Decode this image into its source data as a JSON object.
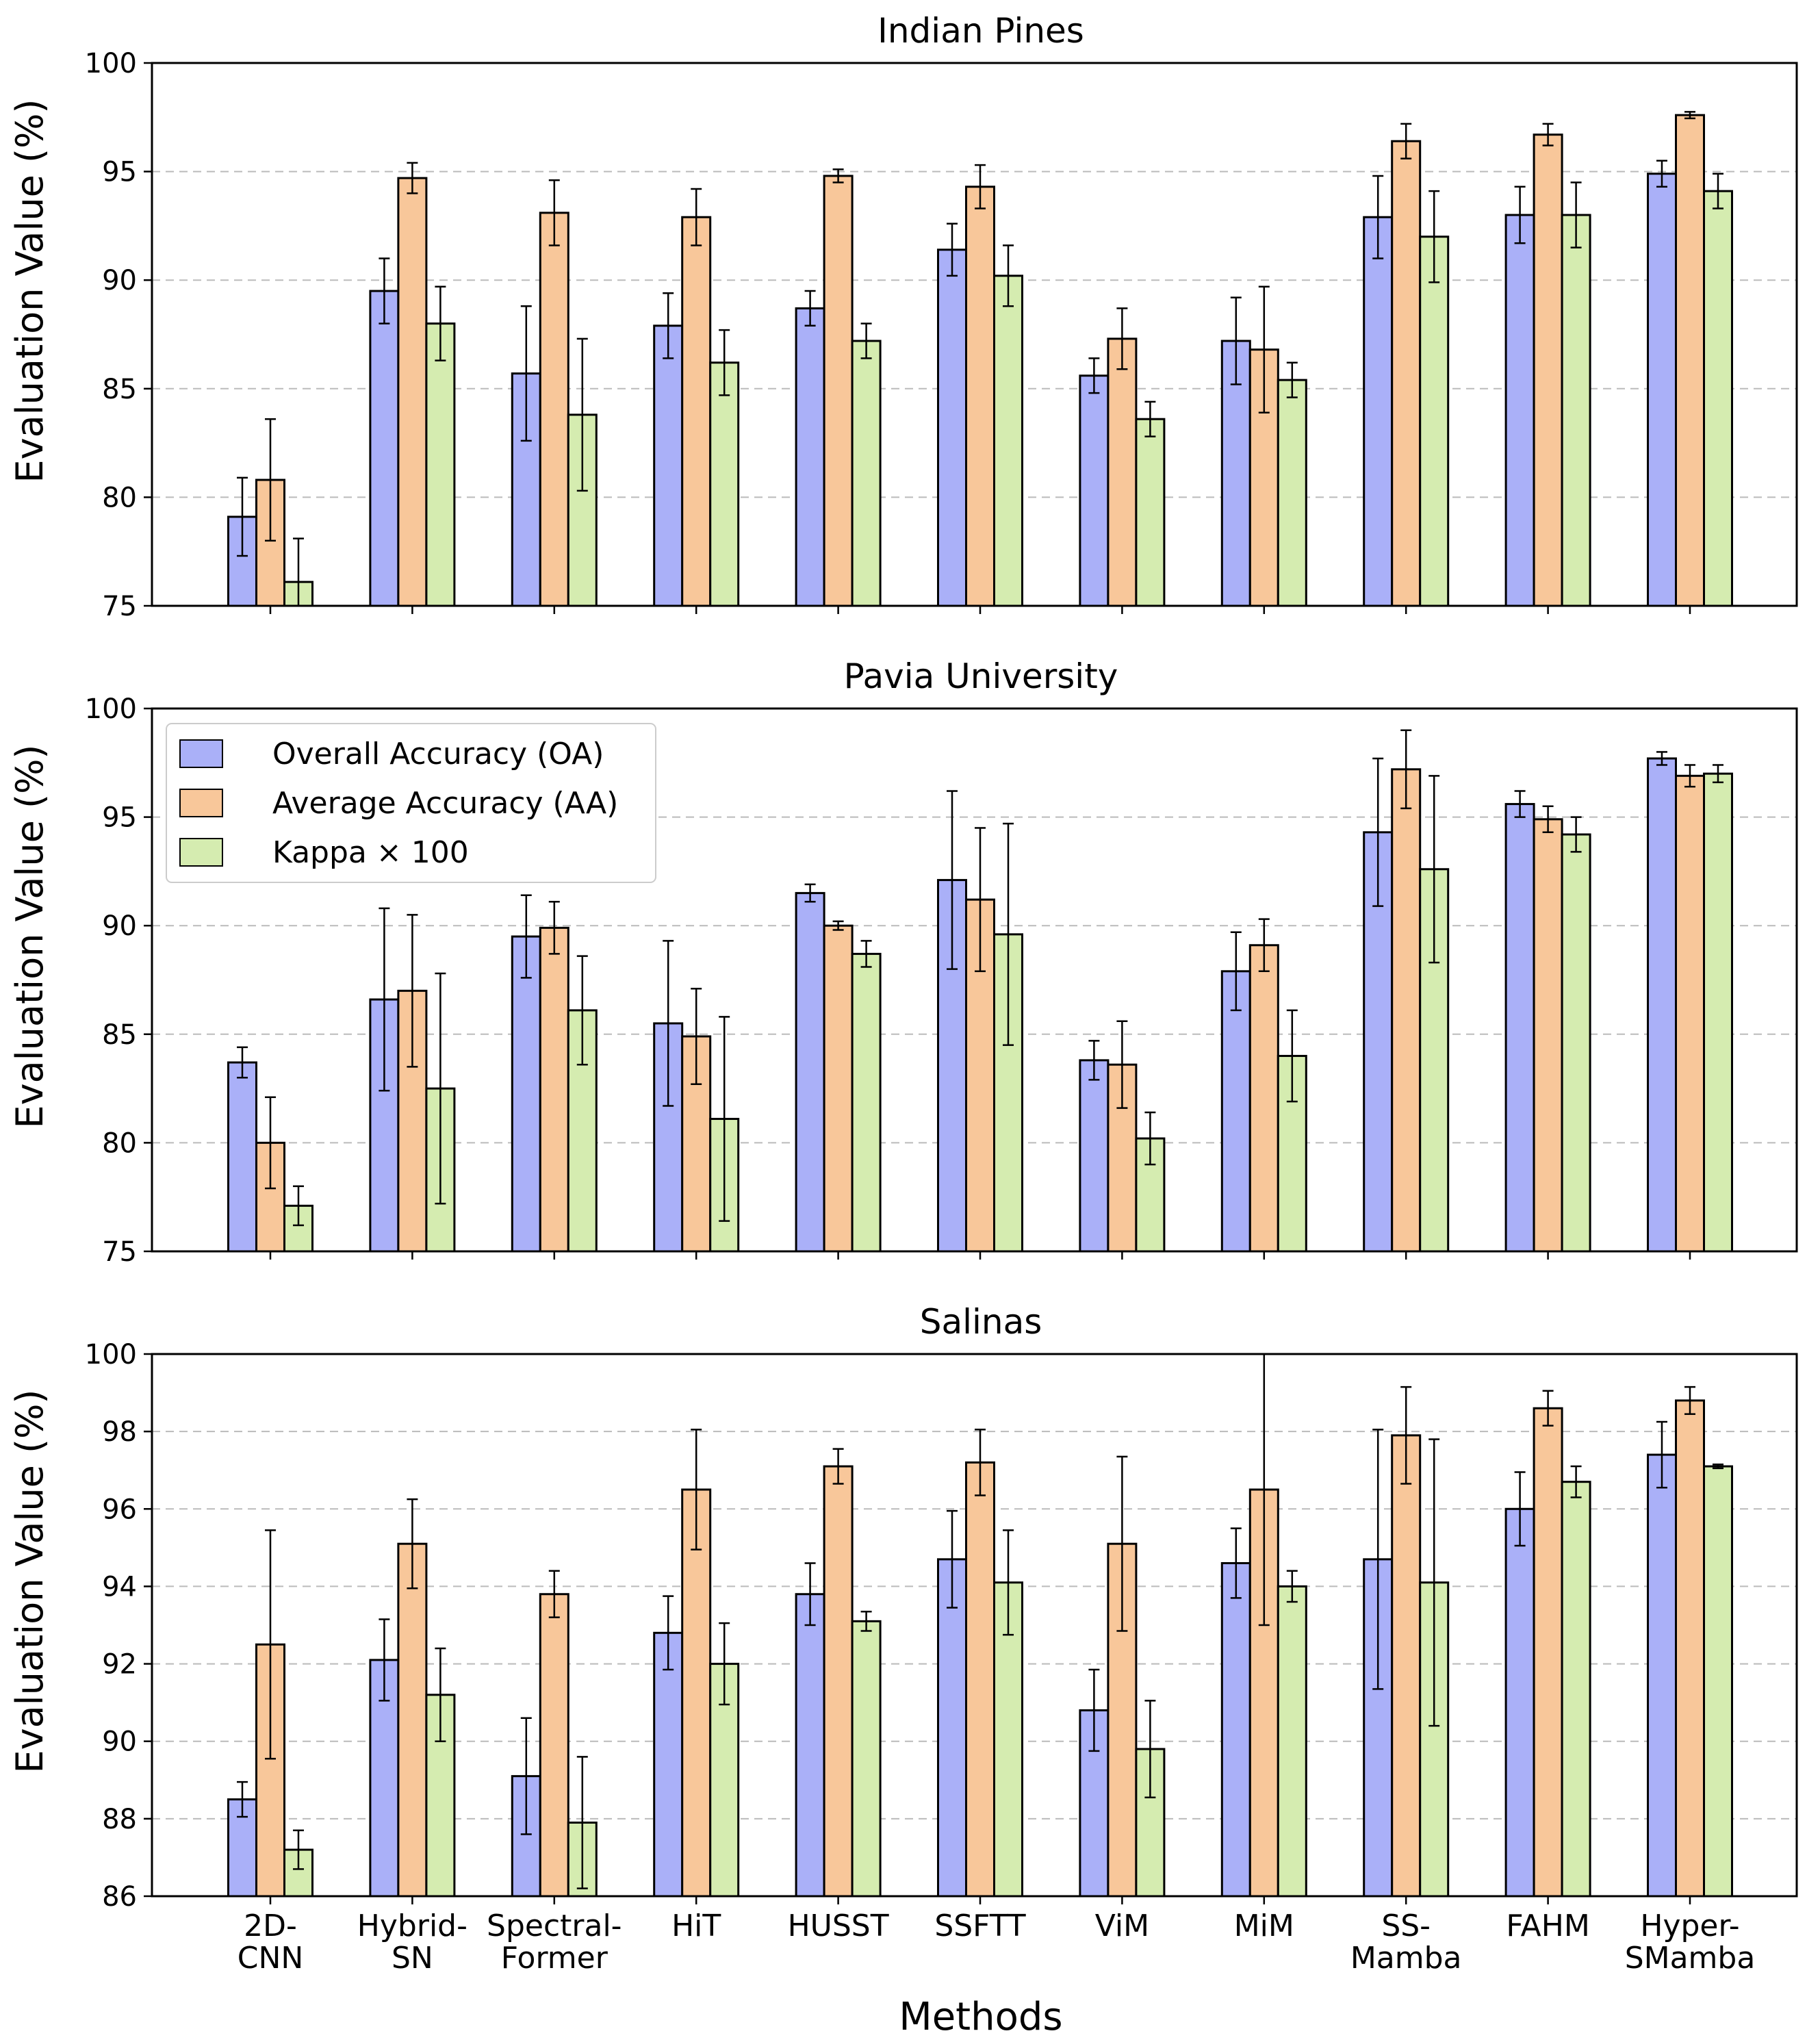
{
  "chart_data": {
    "type": "bar",
    "xlabel": "Methods",
    "ylabel": "Evaluation Value (%)",
    "categories": [
      [
        "2D-",
        "CNN"
      ],
      [
        "Hybrid-",
        "SN"
      ],
      [
        "Spectral-",
        "Former"
      ],
      [
        "HiT"
      ],
      [
        "HUSST"
      ],
      [
        "SSFTT"
      ],
      [
        "ViM"
      ],
      [
        "MiM"
      ],
      [
        "SS-",
        "Mamba"
      ],
      [
        "FAHM"
      ],
      [
        "Hyper-",
        "SMamba"
      ]
    ],
    "legend": {
      "placement": "upper-left of middle panel",
      "entries": [
        "Overall Accuracy (OA)",
        "Average Accuracy (AA)",
        "Kappa × 100"
      ]
    },
    "colors": {
      "OA": "#aab0f8",
      "AA": "#f8c79a",
      "Kappa": "#d5ecb0",
      "edge": "#000000",
      "grid": "#bbbbbb"
    },
    "panels": [
      {
        "title": "Indian Pines",
        "ylim": [
          75,
          100
        ],
        "yticks": [
          "75",
          "80",
          "85",
          "90",
          "95",
          "100"
        ],
        "ytick_values": [
          75,
          80,
          85,
          90,
          95,
          100
        ],
        "grid": "horizontal dashed",
        "series": [
          {
            "name": "Overall Accuracy (OA)",
            "values": [
              79.1,
              89.5,
              85.7,
              87.9,
              88.7,
              91.4,
              85.6,
              87.2,
              92.9,
              93.0,
              94.9
            ],
            "errors": [
              1.8,
              1.5,
              3.1,
              1.5,
              0.8,
              1.2,
              0.8,
              2.0,
              1.9,
              1.3,
              0.6
            ]
          },
          {
            "name": "Average Accuracy (AA)",
            "values": [
              80.8,
              94.7,
              93.1,
              92.9,
              94.8,
              94.3,
              87.3,
              86.8,
              96.4,
              96.7,
              97.6
            ],
            "errors": [
              2.8,
              0.7,
              1.5,
              1.3,
              0.3,
              1.0,
              1.4,
              2.9,
              0.8,
              0.5,
              0.15
            ]
          },
          {
            "name": "Kappa × 100",
            "values": [
              76.1,
              88.0,
              83.8,
              86.2,
              87.2,
              90.2,
              83.6,
              85.4,
              92.0,
              93.0,
              94.1
            ],
            "errors": [
              2.0,
              1.7,
              3.5,
              1.5,
              0.8,
              1.4,
              0.8,
              0.8,
              2.1,
              1.5,
              0.8
            ]
          }
        ]
      },
      {
        "title": "Pavia University",
        "ylim": [
          75,
          100
        ],
        "yticks": [
          "75",
          "80",
          "85",
          "90",
          "95",
          "100"
        ],
        "ytick_values": [
          75,
          80,
          85,
          90,
          95,
          100
        ],
        "grid": "horizontal dashed",
        "series": [
          {
            "name": "Overall Accuracy (OA)",
            "values": [
              83.7,
              86.6,
              89.5,
              85.5,
              91.5,
              92.1,
              83.8,
              87.9,
              94.3,
              95.6,
              97.7
            ],
            "errors": [
              0.7,
              4.2,
              1.9,
              3.8,
              0.4,
              4.1,
              0.9,
              1.8,
              3.4,
              0.6,
              0.3
            ]
          },
          {
            "name": "Average Accuracy (AA)",
            "values": [
              80.0,
              87.0,
              89.9,
              84.9,
              90.0,
              91.2,
              83.6,
              89.1,
              97.2,
              94.9,
              96.9
            ],
            "errors": [
              2.1,
              3.5,
              1.2,
              2.2,
              0.2,
              3.3,
              2.0,
              1.2,
              1.8,
              0.6,
              0.5
            ]
          },
          {
            "name": "Kappa × 100",
            "values": [
              77.1,
              82.5,
              86.1,
              81.1,
              88.7,
              89.6,
              80.2,
              84.0,
              92.6,
              94.2,
              97.0
            ],
            "errors": [
              0.9,
              5.3,
              2.5,
              4.7,
              0.6,
              5.1,
              1.2,
              2.1,
              4.3,
              0.8,
              0.4
            ]
          }
        ]
      },
      {
        "title": "Salinas",
        "ylim": [
          86,
          100
        ],
        "yticks": [
          "86",
          "88",
          "90",
          "92",
          "94",
          "96",
          "98",
          "100"
        ],
        "ytick_values": [
          86,
          88,
          90,
          92,
          94,
          96,
          98,
          100
        ],
        "grid": "horizontal dashed",
        "series": [
          {
            "name": "Overall Accuracy (OA)",
            "values": [
              88.5,
              92.1,
              89.1,
              92.8,
              93.8,
              94.7,
              90.8,
              94.6,
              94.7,
              96.0,
              97.4
            ],
            "errors": [
              0.45,
              1.05,
              1.5,
              0.95,
              0.8,
              1.25,
              1.05,
              0.9,
              3.35,
              0.95,
              0.85
            ]
          },
          {
            "name": "Average Accuracy (AA)",
            "values": [
              92.5,
              95.1,
              93.8,
              96.5,
              97.1,
              97.2,
              95.1,
              96.5,
              97.9,
              98.6,
              98.8
            ],
            "errors": [
              2.95,
              1.15,
              0.6,
              1.55,
              0.45,
              0.85,
              2.25,
              3.5,
              1.25,
              0.45,
              0.35
            ]
          },
          {
            "name": "Kappa × 100",
            "values": [
              87.2,
              91.2,
              87.9,
              92.0,
              93.1,
              94.1,
              89.8,
              94.0,
              94.1,
              96.7,
              97.1
            ],
            "errors": [
              0.5,
              1.2,
              1.7,
              1.05,
              0.25,
              1.35,
              1.25,
              0.4,
              3.7,
              0.4,
              0.05
            ]
          }
        ]
      }
    ]
  }
}
